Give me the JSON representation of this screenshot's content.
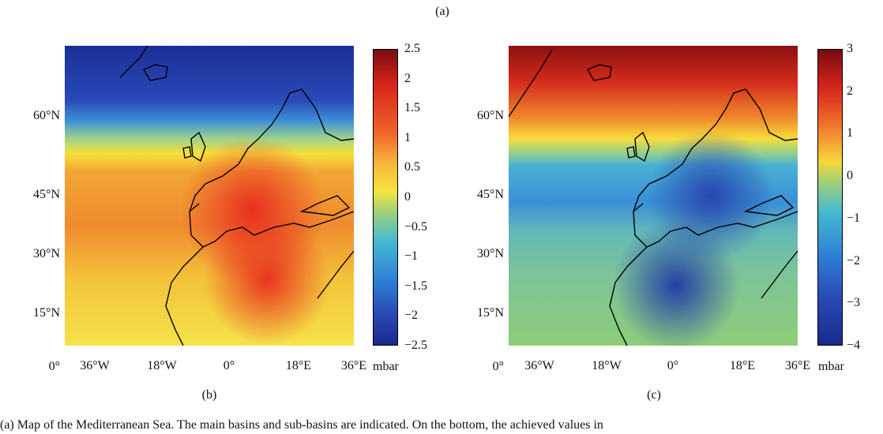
{
  "figure_label_top": "(a)",
  "left_panel": {
    "label": "(b)",
    "colorbar": {
      "unit": "mbar",
      "ticks": [
        "2.5",
        "2",
        "1.5",
        "1",
        "0.5",
        "0",
        "−0.5",
        "−1",
        "−1.5",
        "−2",
        "−2.5"
      ],
      "min": -2.5,
      "max": 2.5
    }
  },
  "right_panel": {
    "label": "(c)",
    "colorbar": {
      "unit": "mbar",
      "ticks": [
        "3",
        "2",
        "1",
        "0",
        "−1",
        "−2",
        "−3",
        "−4"
      ],
      "min": -4,
      "max": 3
    }
  },
  "lat_ticks": [
    "60°N",
    "45°N",
    "30°N",
    "15°N",
    "0°"
  ],
  "lon_ticks": [
    "36°W",
    "18°W",
    "0°",
    "18°E",
    "36°E"
  ],
  "caption": "(a) Map of the Mediterranean Sea. The main basins and sub-basins are indicated. On the bottom, the achieved values in"
}
